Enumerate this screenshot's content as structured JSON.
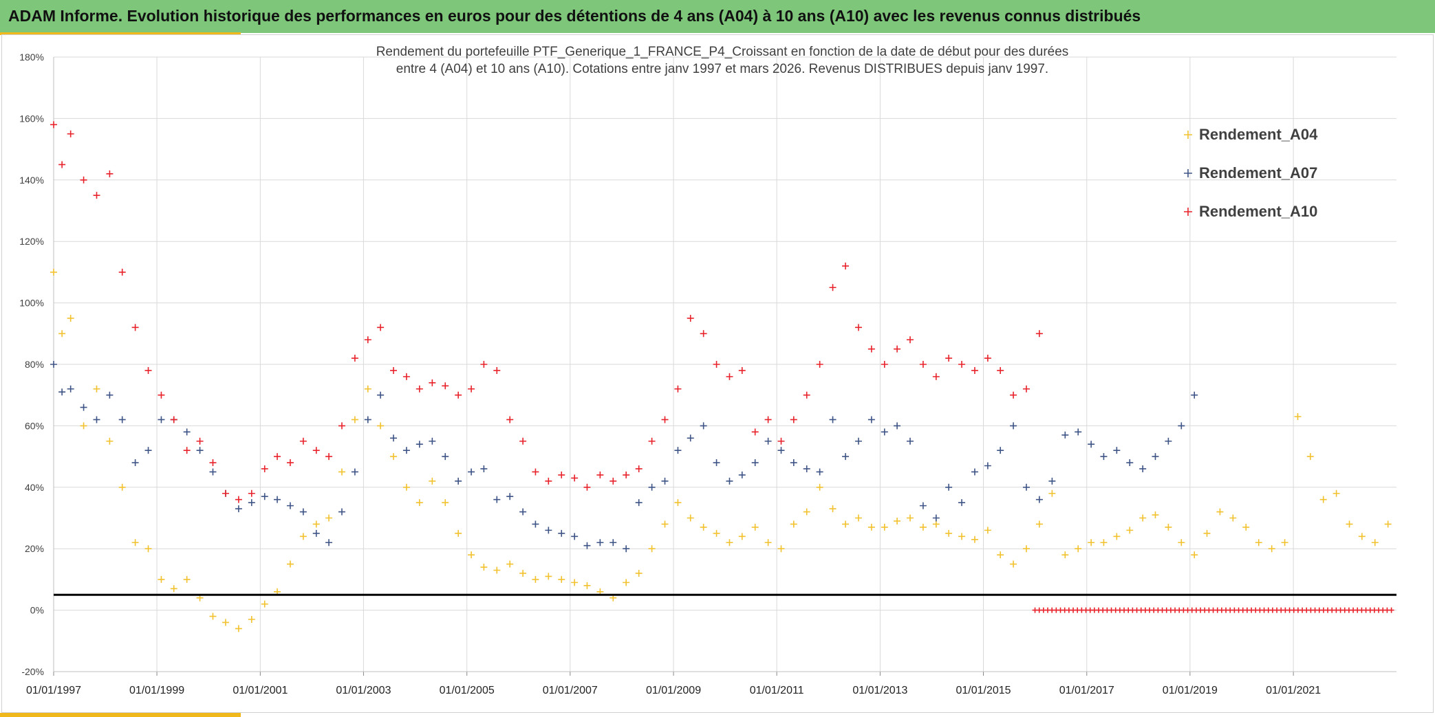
{
  "header": {
    "title": "ADAM Informe. Evolution historique des performances en euros pour des détentions de 4 ans (A04) à 10 ans (A10) avec les revenus connus distribués"
  },
  "colors": {
    "header_bg": "#7dc67a",
    "accent": "#f0b81a",
    "A04": "#f2c12e",
    "A07": "#3e5486",
    "A10": "#e8222a",
    "threshold": "#000000",
    "grid": "#d9d9d9"
  },
  "chart_data": {
    "type": "scatter",
    "marker": "plus",
    "title_lines": [
      "Rendement du portefeuille PTF_Generique_1_FRANCE_P4_Croissant en fonction de la date de début pour des durées",
      "entre 4 (A04) et 10 ans (A10). Cotations entre janv 1997 et mars 2026. Revenus DISTRIBUES depuis janv 1997."
    ],
    "xlabel": "",
    "ylabel": "",
    "xlim": [
      "1997-01-01",
      "2022-12-31"
    ],
    "ylim": [
      -0.2,
      1.8
    ],
    "y_ticks": [
      -0.2,
      0,
      0.2,
      0.4,
      0.6,
      0.8,
      1.0,
      1.2,
      1.4,
      1.6,
      1.8
    ],
    "y_tick_labels": [
      "-20%",
      "0%",
      "20%",
      "40%",
      "60%",
      "80%",
      "100%",
      "120%",
      "140%",
      "160%",
      "180%"
    ],
    "x_ticks": [
      "1997-01-01",
      "1999-01-01",
      "2001-01-01",
      "2003-01-01",
      "2005-01-01",
      "2007-01-01",
      "2009-01-01",
      "2011-01-01",
      "2013-01-01",
      "2015-01-01",
      "2017-01-01",
      "2019-01-01",
      "2021-01-01"
    ],
    "x_tick_labels": [
      "01/01/1997",
      "01/01/1999",
      "01/01/2001",
      "01/01/2003",
      "01/01/2005",
      "01/01/2007",
      "01/01/2009",
      "01/01/2011",
      "01/01/2013",
      "01/01/2015",
      "01/01/2017",
      "01/01/2019",
      "01/01/2021"
    ],
    "grid": true,
    "legend_position": "top-right",
    "threshold_line": 0.05,
    "series": [
      {
        "name": "Rendement_A04",
        "color": "#f2c12e",
        "x": [
          "1997-01",
          "1997-03",
          "1997-05",
          "1997-08",
          "1997-11",
          "1998-02",
          "1998-05",
          "1998-08",
          "1998-11",
          "1999-02",
          "1999-05",
          "1999-08",
          "1999-11",
          "2000-02",
          "2000-05",
          "2000-08",
          "2000-11",
          "2001-02",
          "2001-05",
          "2001-08",
          "2001-11",
          "2002-02",
          "2002-05",
          "2002-08",
          "2002-11",
          "2003-02",
          "2003-05",
          "2003-08",
          "2003-11",
          "2004-02",
          "2004-05",
          "2004-08",
          "2004-11",
          "2005-02",
          "2005-05",
          "2005-08",
          "2005-11",
          "2006-02",
          "2006-05",
          "2006-08",
          "2006-11",
          "2007-02",
          "2007-05",
          "2007-08",
          "2007-11",
          "2008-02",
          "2008-05",
          "2008-08",
          "2008-11",
          "2009-02",
          "2009-05",
          "2009-08",
          "2009-11",
          "2010-02",
          "2010-05",
          "2010-08",
          "2010-11",
          "2011-02",
          "2011-05",
          "2011-08",
          "2011-11",
          "2012-02",
          "2012-05",
          "2012-08",
          "2012-11",
          "2013-02",
          "2013-05",
          "2013-08",
          "2013-11",
          "2014-02",
          "2014-05",
          "2014-08",
          "2014-11",
          "2015-02",
          "2015-05",
          "2015-08",
          "2015-11",
          "2016-02",
          "2016-05",
          "2016-08",
          "2016-11",
          "2017-02",
          "2017-05",
          "2017-08",
          "2017-11",
          "2018-02",
          "2018-05",
          "2018-08",
          "2018-11",
          "2019-02",
          "2019-05",
          "2019-08",
          "2019-11",
          "2020-02",
          "2020-05",
          "2020-08",
          "2020-11",
          "2021-02",
          "2021-05",
          "2021-08",
          "2021-11",
          "2022-02",
          "2022-05",
          "2022-08",
          "2022-11"
        ],
        "y": [
          1.1,
          0.9,
          0.95,
          0.6,
          0.72,
          0.55,
          0.4,
          0.22,
          0.2,
          0.1,
          0.07,
          0.1,
          0.04,
          -0.02,
          -0.04,
          -0.06,
          -0.03,
          0.02,
          0.06,
          0.15,
          0.24,
          0.28,
          0.3,
          0.45,
          0.62,
          0.72,
          0.6,
          0.5,
          0.4,
          0.35,
          0.42,
          0.35,
          0.25,
          0.18,
          0.14,
          0.13,
          0.15,
          0.12,
          0.1,
          0.11,
          0.1,
          0.09,
          0.08,
          0.06,
          0.04,
          0.09,
          0.12,
          0.2,
          0.28,
          0.35,
          0.3,
          0.27,
          0.25,
          0.22,
          0.24,
          0.27,
          0.22,
          0.2,
          0.28,
          0.32,
          0.4,
          0.33,
          0.28,
          0.3,
          0.27,
          0.27,
          0.29,
          0.3,
          0.27,
          0.28,
          0.25,
          0.24,
          0.23,
          0.26,
          0.18,
          0.15,
          0.2,
          0.28,
          0.38,
          0.18,
          0.2,
          0.22,
          0.22,
          0.24,
          0.26,
          0.3,
          0.31,
          0.27,
          0.22,
          0.18,
          0.25,
          0.32,
          0.3,
          0.27,
          0.22,
          0.2,
          0.22,
          0.63,
          0.5,
          0.36,
          0.38,
          0.28,
          0.24,
          0.22,
          0.28
        ]
      },
      {
        "name": "Rendement_A07",
        "color": "#3e5486",
        "x": [
          "1997-01",
          "1997-03",
          "1997-05",
          "1997-08",
          "1997-11",
          "1998-02",
          "1998-05",
          "1998-08",
          "1998-11",
          "1999-02",
          "1999-05",
          "1999-08",
          "1999-11",
          "2000-02",
          "2000-05",
          "2000-08",
          "2000-11",
          "2001-02",
          "2001-05",
          "2001-08",
          "2001-11",
          "2002-02",
          "2002-05",
          "2002-08",
          "2002-11",
          "2003-02",
          "2003-05",
          "2003-08",
          "2003-11",
          "2004-02",
          "2004-05",
          "2004-08",
          "2004-11",
          "2005-02",
          "2005-05",
          "2005-08",
          "2005-11",
          "2006-02",
          "2006-05",
          "2006-08",
          "2006-11",
          "2007-02",
          "2007-05",
          "2007-08",
          "2007-11",
          "2008-02",
          "2008-05",
          "2008-08",
          "2008-11",
          "2009-02",
          "2009-05",
          "2009-08",
          "2009-11",
          "2010-02",
          "2010-05",
          "2010-08",
          "2010-11",
          "2011-02",
          "2011-05",
          "2011-08",
          "2011-11",
          "2012-02",
          "2012-05",
          "2012-08",
          "2012-11",
          "2013-02",
          "2013-05",
          "2013-08",
          "2013-11",
          "2014-02",
          "2014-05",
          "2014-08",
          "2014-11",
          "2015-02",
          "2015-05",
          "2015-08",
          "2015-11",
          "2016-02",
          "2016-05",
          "2016-08",
          "2016-11",
          "2017-02",
          "2017-05",
          "2017-08",
          "2017-11",
          "2018-02",
          "2018-05",
          "2018-08",
          "2018-11",
          "2019-02"
        ],
        "y": [
          0.8,
          0.71,
          0.72,
          0.66,
          0.62,
          0.7,
          0.62,
          0.48,
          0.52,
          0.62,
          0.62,
          0.58,
          0.52,
          0.45,
          0.38,
          0.33,
          0.35,
          0.37,
          0.36,
          0.34,
          0.32,
          0.25,
          0.22,
          0.32,
          0.45,
          0.62,
          0.7,
          0.56,
          0.52,
          0.54,
          0.55,
          0.5,
          0.42,
          0.45,
          0.46,
          0.36,
          0.37,
          0.32,
          0.28,
          0.26,
          0.25,
          0.24,
          0.21,
          0.22,
          0.22,
          0.2,
          0.35,
          0.4,
          0.42,
          0.52,
          0.56,
          0.6,
          0.48,
          0.42,
          0.44,
          0.48,
          0.55,
          0.52,
          0.48,
          0.46,
          0.45,
          0.62,
          0.5,
          0.55,
          0.62,
          0.58,
          0.6,
          0.55,
          0.34,
          0.3,
          0.4,
          0.35,
          0.45,
          0.47,
          0.52,
          0.6,
          0.4,
          0.36,
          0.42,
          0.57,
          0.58,
          0.54,
          0.5,
          0.52,
          0.48,
          0.46,
          0.5,
          0.55,
          0.6,
          0.7
        ]
      },
      {
        "name": "Rendement_A10",
        "color": "#e8222a",
        "x": [
          "1997-01",
          "1997-03",
          "1997-05",
          "1997-08",
          "1997-11",
          "1998-02",
          "1998-05",
          "1998-08",
          "1998-11",
          "1999-02",
          "1999-05",
          "1999-08",
          "1999-11",
          "2000-02",
          "2000-05",
          "2000-08",
          "2000-11",
          "2001-02",
          "2001-05",
          "2001-08",
          "2001-11",
          "2002-02",
          "2002-05",
          "2002-08",
          "2002-11",
          "2003-02",
          "2003-05",
          "2003-08",
          "2003-11",
          "2004-02",
          "2004-05",
          "2004-08",
          "2004-11",
          "2005-02",
          "2005-05",
          "2005-08",
          "2005-11",
          "2006-02",
          "2006-05",
          "2006-08",
          "2006-11",
          "2007-02",
          "2007-05",
          "2007-08",
          "2007-11",
          "2008-02",
          "2008-05",
          "2008-08",
          "2008-11",
          "2009-02",
          "2009-05",
          "2009-08",
          "2009-11",
          "2010-02",
          "2010-05",
          "2010-08",
          "2010-11",
          "2011-02",
          "2011-05",
          "2011-08",
          "2011-11",
          "2012-02",
          "2012-05",
          "2012-08",
          "2012-11",
          "2013-02",
          "2013-05",
          "2013-08",
          "2013-11",
          "2014-02",
          "2014-05",
          "2014-08",
          "2014-11",
          "2015-02",
          "2015-05",
          "2015-08",
          "2015-11",
          "2016-02"
        ],
        "y": [
          1.58,
          1.45,
          1.55,
          1.4,
          1.35,
          1.42,
          1.1,
          0.92,
          0.78,
          0.7,
          0.62,
          0.52,
          0.55,
          0.48,
          0.38,
          0.36,
          0.38,
          0.46,
          0.5,
          0.48,
          0.55,
          0.52,
          0.5,
          0.6,
          0.82,
          0.88,
          0.92,
          0.78,
          0.76,
          0.72,
          0.74,
          0.73,
          0.7,
          0.72,
          0.8,
          0.78,
          0.62,
          0.55,
          0.45,
          0.42,
          0.44,
          0.43,
          0.4,
          0.44,
          0.42,
          0.44,
          0.46,
          0.55,
          0.62,
          0.72,
          0.95,
          0.9,
          0.8,
          0.76,
          0.78,
          0.58,
          0.62,
          0.55,
          0.62,
          0.7,
          0.8,
          1.05,
          1.12,
          0.92,
          0.85,
          0.8,
          0.85,
          0.88,
          0.8,
          0.76,
          0.82,
          0.8,
          0.78,
          0.82,
          0.78,
          0.7,
          0.72,
          0.9
        ],
        "extra_flat_zero_from": "2016-01",
        "extra_flat_zero_to": "2022-12"
      }
    ]
  }
}
